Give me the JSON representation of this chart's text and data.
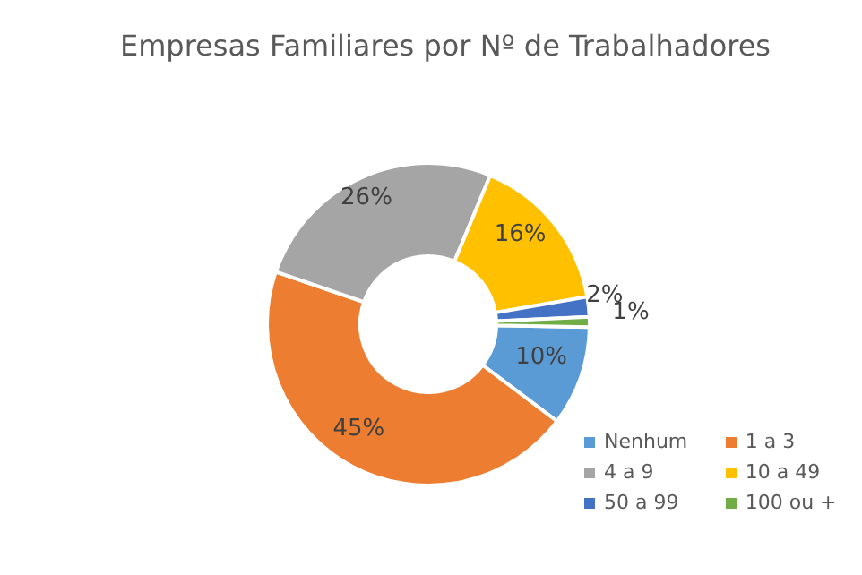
{
  "chart_data": {
    "type": "donut",
    "title": "Empresas Familiares por Nº de Trabalhadores",
    "categories": [
      "Nenhum",
      "1 a 3",
      "4 a 9",
      "10 a 49",
      "50 a 99",
      "100 ou +"
    ],
    "values": [
      10,
      45,
      26,
      16,
      2,
      1
    ],
    "colors": [
      "#5b9bd5",
      "#ed7d31",
      "#a5a5a5",
      "#ffc000",
      "#4472c4",
      "#70ad47"
    ],
    "value_labels": [
      "10%",
      "45%",
      "26%",
      "16%",
      "2%",
      "1%"
    ],
    "legend": "bottom right"
  }
}
